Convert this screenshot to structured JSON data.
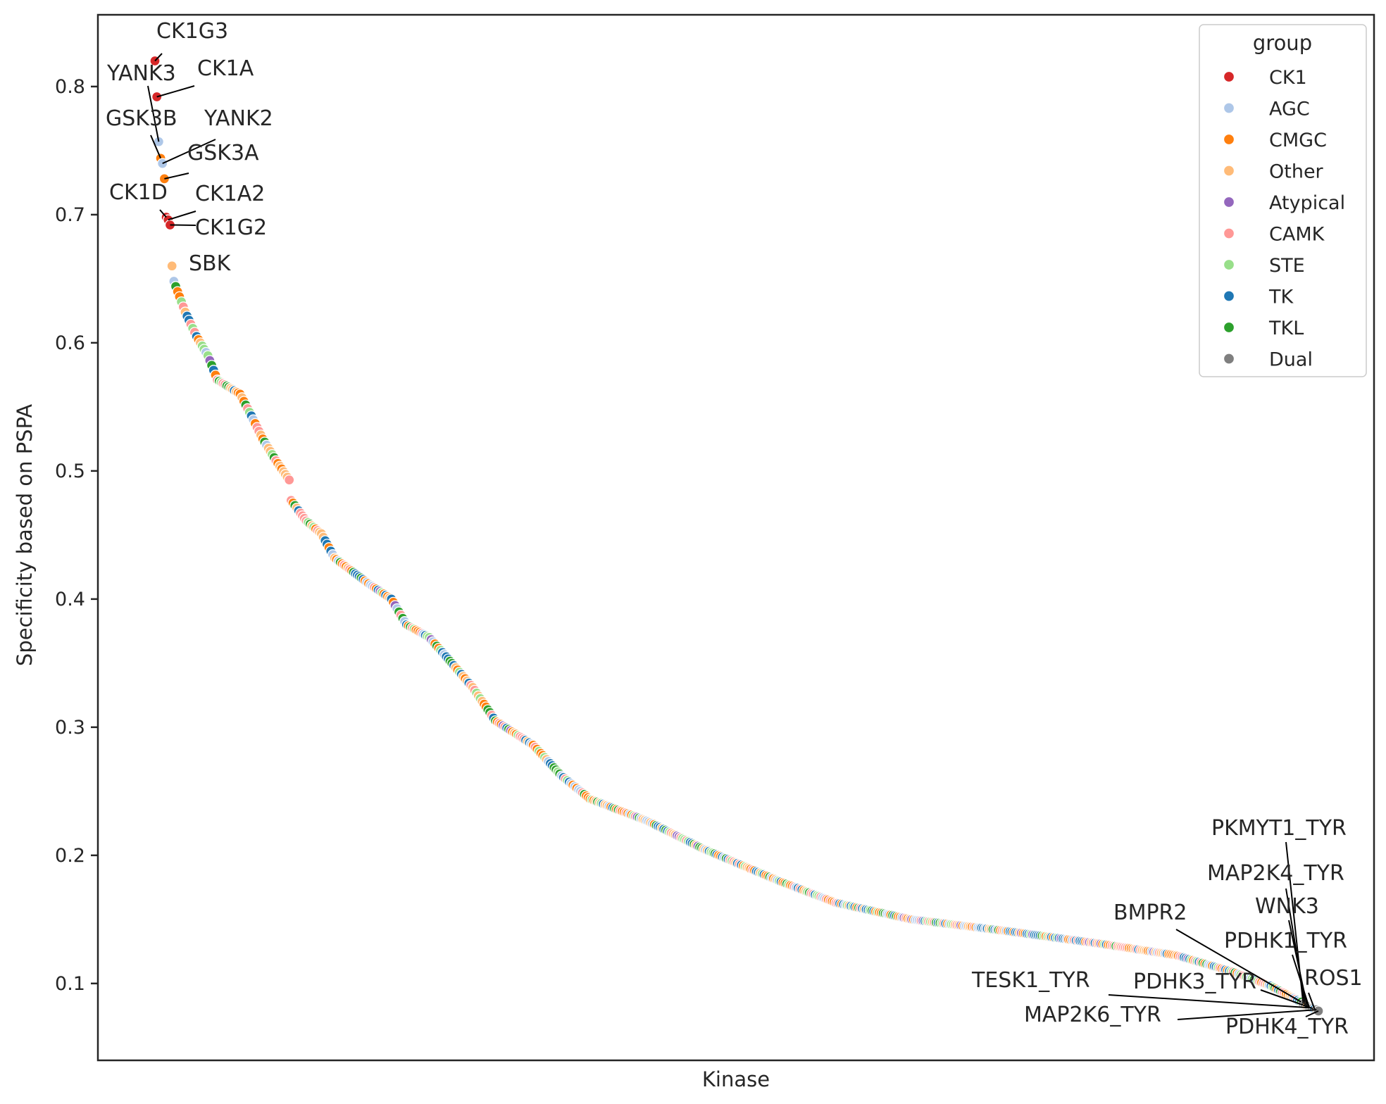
{
  "chart_data": {
    "type": "scatter",
    "title": "",
    "xlabel": "Kinase",
    "ylabel": "Specificity based on PSPA",
    "ylim": [
      0.04,
      0.856
    ],
    "yticks": [
      0.1,
      0.2,
      0.3,
      0.4,
      0.5,
      0.6,
      0.7,
      0.8
    ],
    "ytick_labels": [
      "0.1",
      "0.2",
      "0.3",
      "0.4",
      "0.5",
      "0.6",
      "0.7",
      "0.8"
    ],
    "x_rank_range": [
      0,
      380
    ],
    "grid": false,
    "legend": {
      "title": "group",
      "placement": "top-right",
      "entries": [
        {
          "name": "CK1",
          "color": "#d62728"
        },
        {
          "name": "AGC",
          "color": "#aec7e8"
        },
        {
          "name": "CMGC",
          "color": "#ff7f0e"
        },
        {
          "name": "Other",
          "color": "#ffbb78"
        },
        {
          "name": "Atypical",
          "color": "#9467bd"
        },
        {
          "name": "CAMK",
          "color": "#ff9896"
        },
        {
          "name": "STE",
          "color": "#98df8a"
        },
        {
          "name": "TK",
          "color": "#1f77b4"
        },
        {
          "name": "TKL",
          "color": "#2ca02c"
        },
        {
          "name": "Dual",
          "color": "#7f7f7f"
        }
      ]
    },
    "curve_knots": [
      [
        0,
        0.82
      ],
      [
        1,
        0.792
      ],
      [
        2,
        0.757
      ],
      [
        3,
        0.744
      ],
      [
        4,
        0.74
      ],
      [
        5,
        0.728
      ],
      [
        6,
        0.698
      ],
      [
        7,
        0.696
      ],
      [
        8,
        0.692
      ],
      [
        9,
        0.66
      ],
      [
        10,
        0.648
      ],
      [
        13,
        0.636
      ],
      [
        16,
        0.624
      ],
      [
        22,
        0.605
      ],
      [
        28,
        0.59
      ],
      [
        33,
        0.571
      ],
      [
        45,
        0.56
      ],
      [
        51,
        0.543
      ],
      [
        57,
        0.525
      ],
      [
        64,
        0.508
      ],
      [
        71,
        0.493
      ],
      [
        72,
        0.477
      ],
      [
        80,
        0.461
      ],
      [
        88,
        0.451
      ],
      [
        95,
        0.432
      ],
      [
        113,
        0.412
      ],
      [
        125,
        0.4
      ],
      [
        133,
        0.38
      ],
      [
        145,
        0.37
      ],
      [
        154,
        0.355
      ],
      [
        168,
        0.331
      ],
      [
        180,
        0.305
      ],
      [
        200,
        0.286
      ],
      [
        215,
        0.262
      ],
      [
        230,
        0.244
      ],
      [
        260,
        0.227
      ],
      [
        290,
        0.205
      ],
      [
        330,
        0.18
      ],
      [
        360,
        0.163
      ],
      [
        400,
        0.15
      ],
      [
        450,
        0.141
      ],
      [
        500,
        0.131
      ],
      [
        540,
        0.122
      ],
      [
        570,
        0.109
      ],
      [
        590,
        0.098
      ],
      [
        600,
        0.09
      ],
      [
        610,
        0.082
      ],
      [
        615,
        0.079
      ]
    ],
    "n_points": 616,
    "highlighted": [
      {
        "label": "CK1G3",
        "rank": 0,
        "y": 0.82,
        "group": "CK1"
      },
      {
        "label": "CK1A",
        "rank": 1,
        "y": 0.792,
        "group": "CK1"
      },
      {
        "label": "YANK3",
        "rank": 2,
        "y": 0.757,
        "group": "AGC"
      },
      {
        "label": "GSK3B",
        "rank": 3,
        "y": 0.744,
        "group": "CMGC"
      },
      {
        "label": "YANK2",
        "rank": 4,
        "y": 0.74,
        "group": "AGC"
      },
      {
        "label": "GSK3A",
        "rank": 5,
        "y": 0.728,
        "group": "CMGC"
      },
      {
        "label": "CK1D",
        "rank": 6,
        "y": 0.698,
        "group": "CK1"
      },
      {
        "label": "CK1A2",
        "rank": 7,
        "y": 0.696,
        "group": "CK1"
      },
      {
        "label": "CK1G2",
        "rank": 8,
        "y": 0.692,
        "group": "CK1"
      },
      {
        "label": "SBK",
        "rank": 9,
        "y": 0.66,
        "group": "Other"
      },
      {
        "label": "BMPR2",
        "rank": 606,
        "y": 0.0855,
        "group": "TKL"
      },
      {
        "label": "PKMYT1_TYR",
        "rank": 607,
        "y": 0.084,
        "group": "Dual"
      },
      {
        "label": "MAP2K4_TYR",
        "rank": 608,
        "y": 0.0832,
        "group": "Dual"
      },
      {
        "label": "WNK3",
        "rank": 609,
        "y": 0.0825,
        "group": "Other"
      },
      {
        "label": "PDHK1_TYR",
        "rank": 610,
        "y": 0.0818,
        "group": "Dual"
      },
      {
        "label": "TESK1_TYR",
        "rank": 611,
        "y": 0.081,
        "group": "Dual"
      },
      {
        "label": "PDHK3_TYR",
        "rank": 612,
        "y": 0.0805,
        "group": "Dual"
      },
      {
        "label": "ROS1",
        "rank": 613,
        "y": 0.08,
        "group": "TK"
      },
      {
        "label": "MAP2K6_TYR",
        "rank": 614,
        "y": 0.0795,
        "group": "Dual"
      },
      {
        "label": "PDHK4_TYR",
        "rank": 615,
        "y": 0.0785,
        "group": "Dual"
      }
    ]
  }
}
